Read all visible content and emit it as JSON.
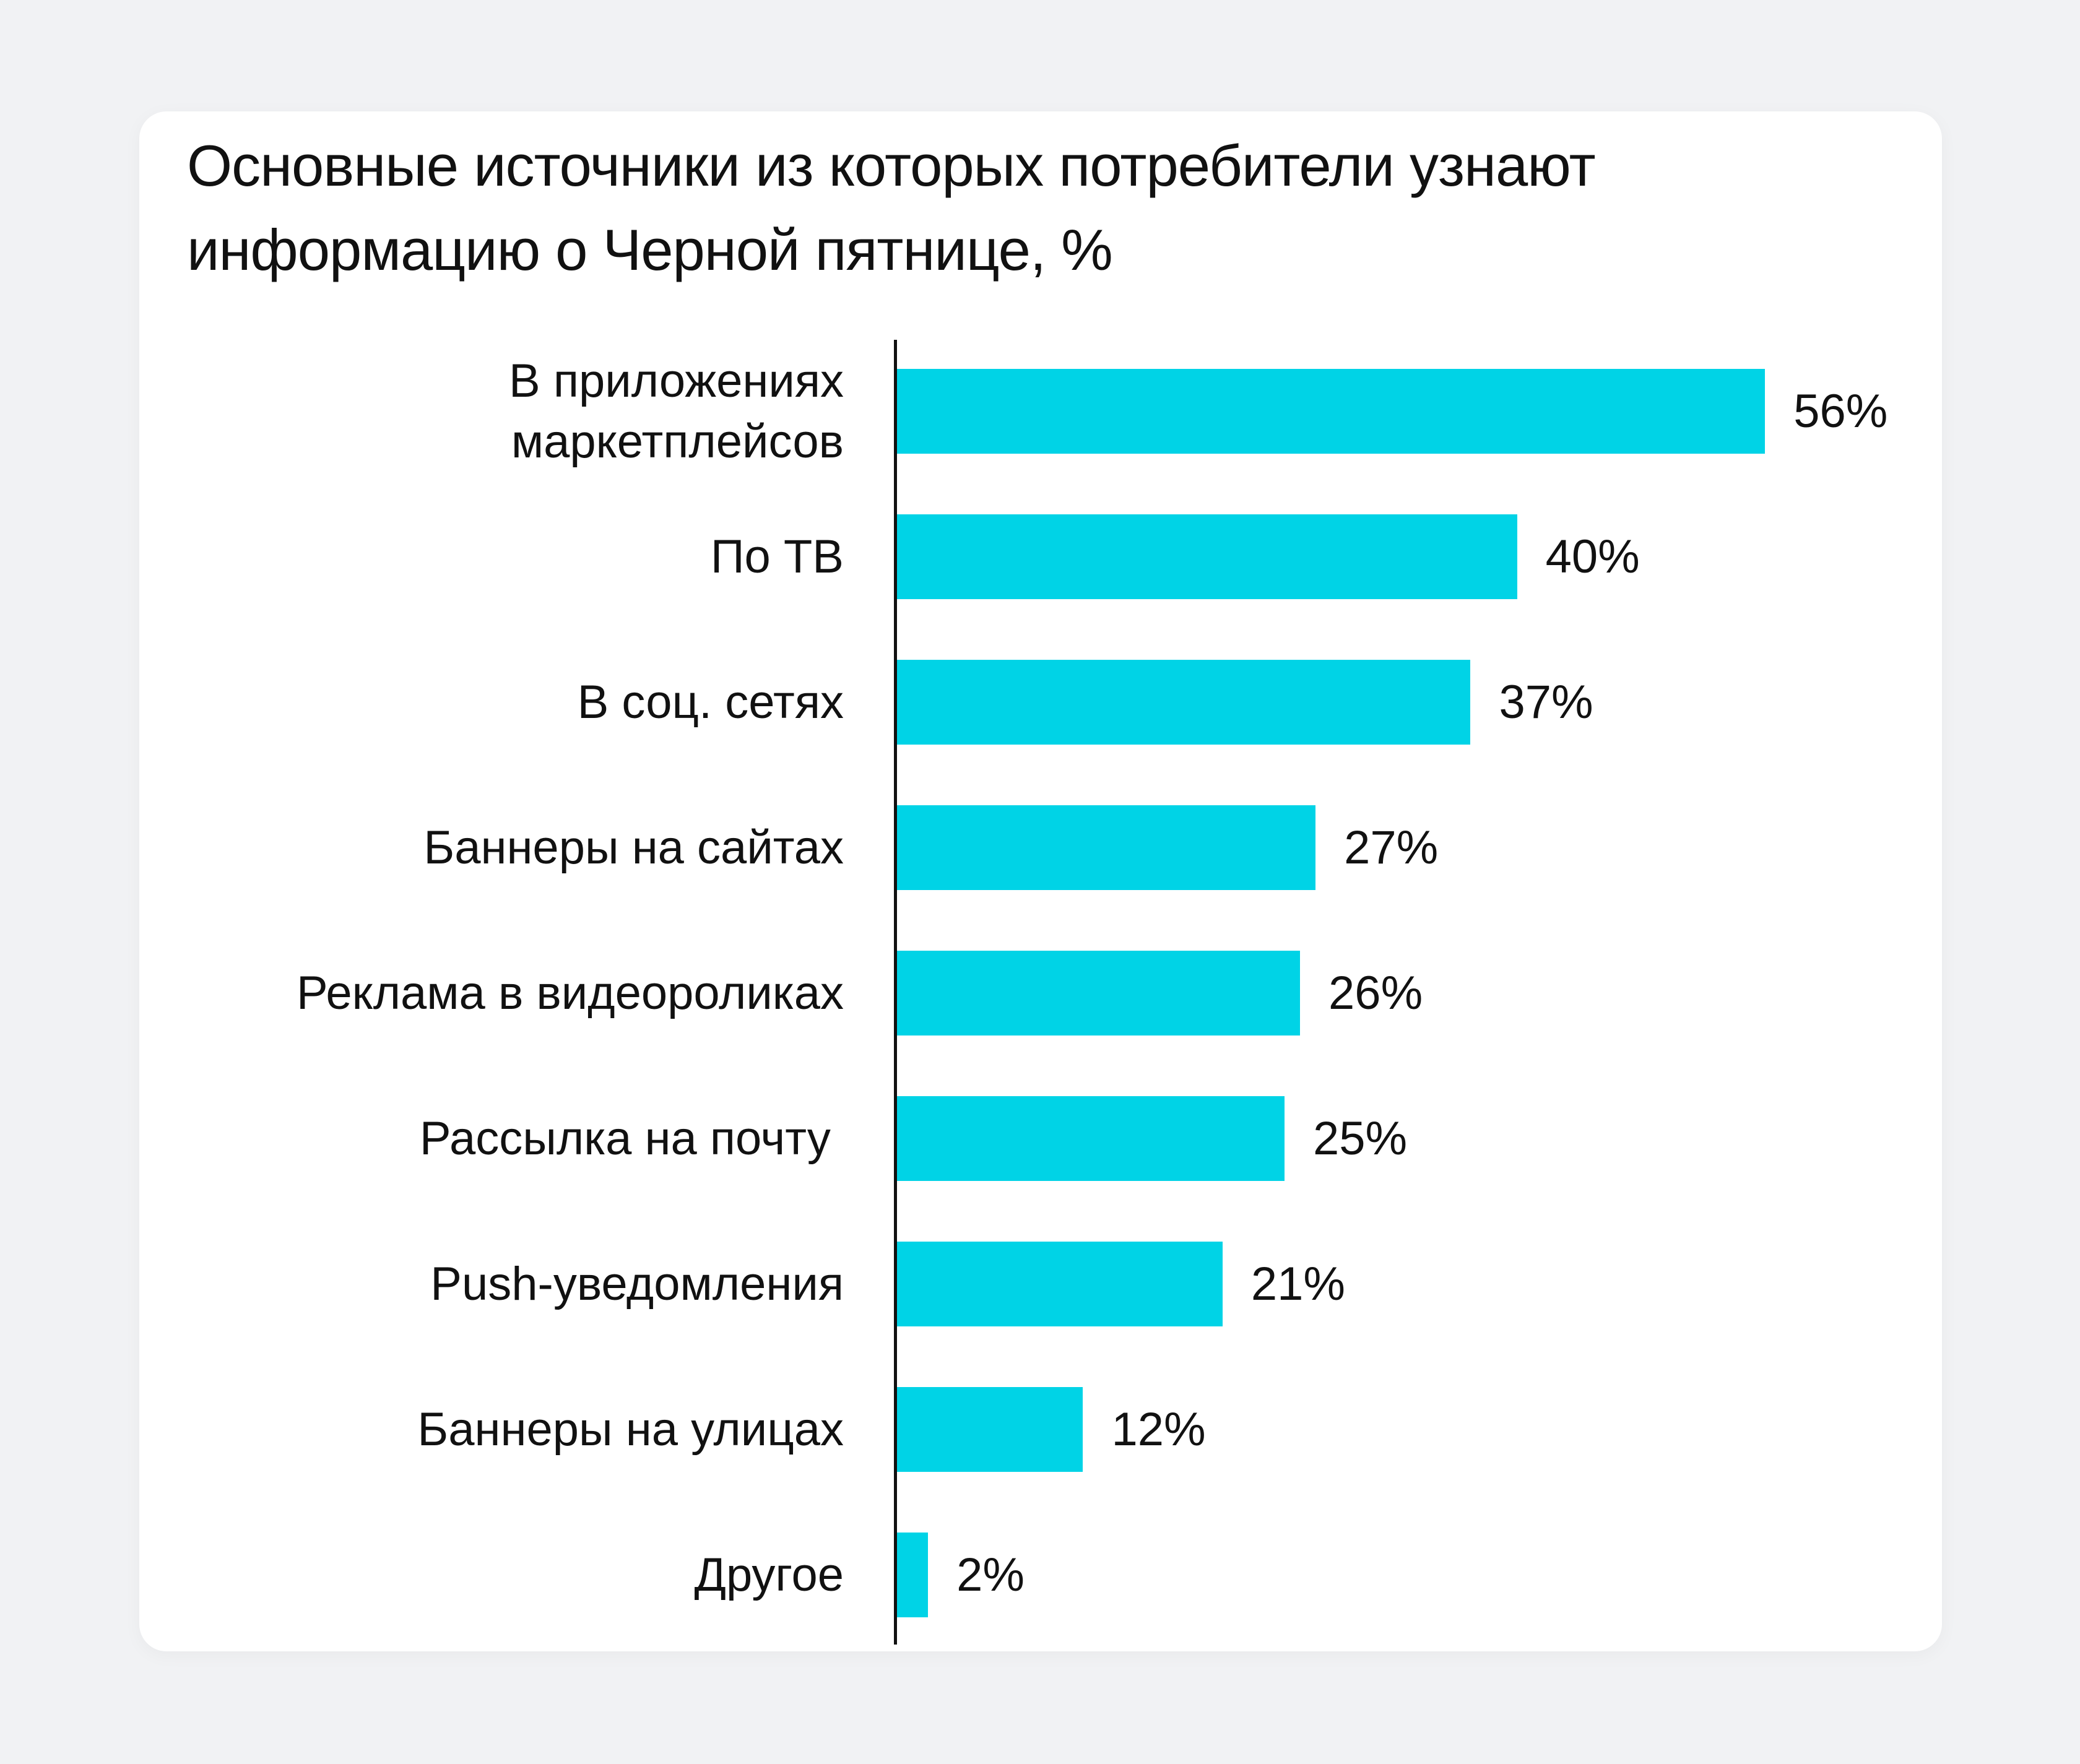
{
  "chart_data": {
    "type": "bar",
    "orientation": "horizontal",
    "title": "Основные источники из которых потребители узнают информацию о Черной пятнице, %",
    "categories": [
      "В приложениях\nмаркетплейсов",
      "По ТВ",
      "В соц. сетях",
      "Баннеры на сайтах",
      "Реклама в видеороликах",
      "Рассылка на почту ",
      "Push-уведомления",
      "Баннеры на улицах",
      "Другое"
    ],
    "values": [
      56,
      40,
      37,
      27,
      26,
      25,
      21,
      12,
      2
    ],
    "value_labels": [
      "56%",
      "40%",
      "37%",
      "27%",
      "26%",
      "25%",
      "21%",
      "12%",
      "2%"
    ],
    "unit": "%",
    "xlabel": "",
    "ylabel": "",
    "xlim": [
      0,
      56
    ],
    "grid": false,
    "legend": "none",
    "bar_color": "#00d3e6",
    "background_color": "#f1f2f4"
  }
}
